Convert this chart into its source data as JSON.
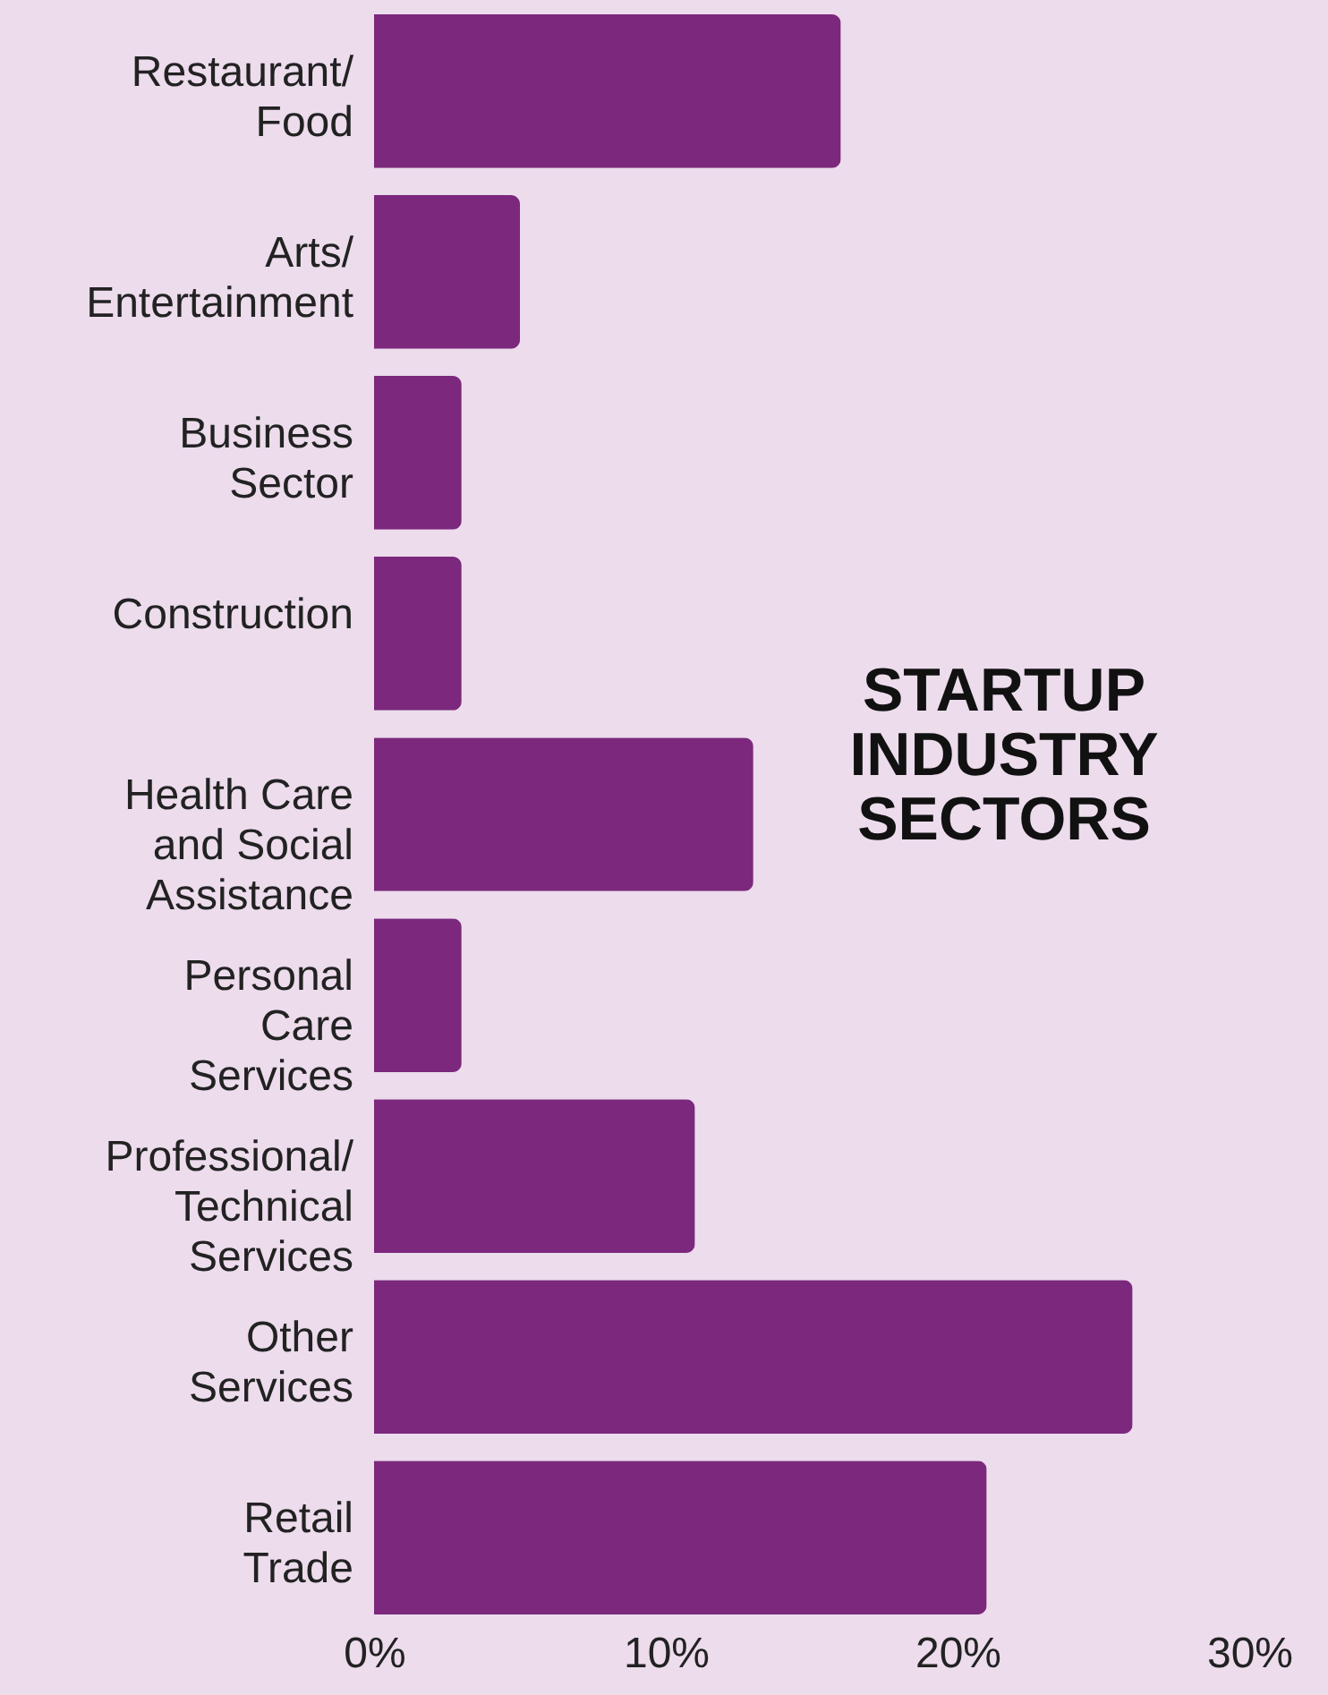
{
  "chart_data": {
    "type": "bar",
    "orientation": "horizontal",
    "title": "STARTUP\nINDUSTRY\nSECTORS",
    "categories": [
      "Restaurant/\nFood",
      "Arts/\nEntertainment",
      "Business\nSector",
      "Construction",
      "Health Care\nand Social\nAssistance",
      "Personal\nCare\nServices",
      "Professional/\nTechnical\nServices",
      "Other\nServices",
      "Retail\nTrade"
    ],
    "values": [
      16,
      5,
      3,
      3,
      13,
      3,
      11,
      26,
      21
    ],
    "color": "#7b287d",
    "xlim": [
      0,
      30
    ],
    "xticks": [
      {
        "value": 0,
        "label": "0%"
      },
      {
        "value": 10,
        "label": "10%"
      },
      {
        "value": 20,
        "label": "20%"
      },
      {
        "value": 30,
        "label": "30%"
      }
    ],
    "grid": false
  }
}
